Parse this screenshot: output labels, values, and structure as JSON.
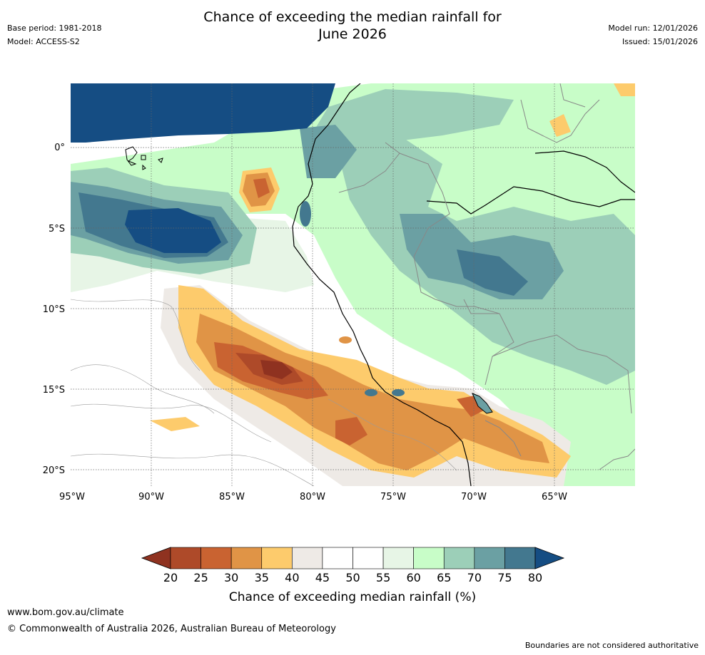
{
  "title_line1": "Chance of exceeding the median rainfall for",
  "title_line2": "June 2026",
  "meta_left": {
    "base_period": "Base period: 1981-2018",
    "model": "Model: ACCESS-S2"
  },
  "meta_right": {
    "model_run": "Model run: 12/01/2026",
    "issued": "Issued: 15/01/2026"
  },
  "map": {
    "lon_labels": [
      "95°W",
      "90°W",
      "85°W",
      "80°W",
      "75°W",
      "70°W",
      "65°W"
    ],
    "lat_labels": [
      "0°",
      "5°S",
      "10°S",
      "15°S",
      "20°S"
    ]
  },
  "colorbar": {
    "ticks": [
      "20",
      "25",
      "30",
      "35",
      "40",
      "45",
      "50",
      "55",
      "60",
      "65",
      "70",
      "75",
      "80"
    ],
    "colors": [
      "#8f3220",
      "#ae4a29",
      "#c96331",
      "#e09446",
      "#fdcb6c",
      "#eeeae6",
      "#ffffff",
      "#ffffff",
      "#e7f5e6",
      "#c8fdc8",
      "#9ccfb8",
      "#6ba0a3",
      "#43788f",
      "#154d83"
    ],
    "label": "Chance of exceeding median rainfall (%)"
  },
  "footer": {
    "url": "www.bom.gov.au/climate",
    "copyright": "© Commonwealth of Australia 2026, Australian Bureau of Meteorology",
    "disclaimer": "Boundaries are not considered authoritative"
  }
}
